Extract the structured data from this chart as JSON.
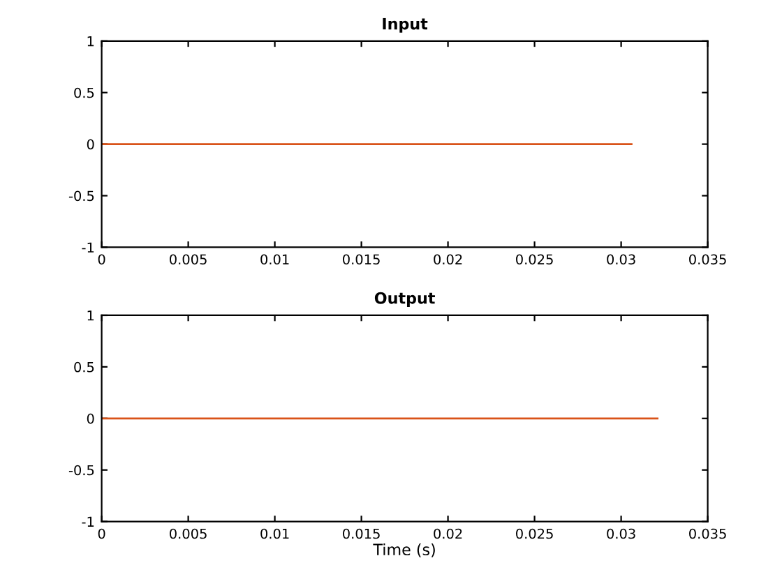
{
  "chart_data": [
    {
      "type": "line",
      "title": "Input",
      "x": [
        0,
        0.0306
      ],
      "series": [
        {
          "color": "#d95319",
          "values": [
            0,
            0
          ]
        }
      ],
      "xlim": [
        0,
        0.035
      ],
      "xticks": [
        0,
        0.005,
        0.01,
        0.015,
        0.02,
        0.025,
        0.03,
        0.035
      ],
      "ylim": [
        -1,
        1
      ],
      "yticks": [
        -1,
        -0.5,
        0,
        0.5,
        1
      ],
      "grid": false,
      "legend": false
    },
    {
      "type": "line",
      "title": "Output",
      "xlabel": "Time (s)",
      "x": [
        0,
        0.0321
      ],
      "series": [
        {
          "color": "#d95319",
          "values": [
            0,
            0
          ]
        }
      ],
      "xlim": [
        0,
        0.035
      ],
      "xticks": [
        0,
        0.005,
        0.01,
        0.015,
        0.02,
        0.025,
        0.03,
        0.035
      ],
      "ylim": [
        -1,
        1
      ],
      "yticks": [
        -1,
        -0.5,
        0,
        0.5,
        1
      ],
      "grid": false,
      "legend": false
    }
  ]
}
